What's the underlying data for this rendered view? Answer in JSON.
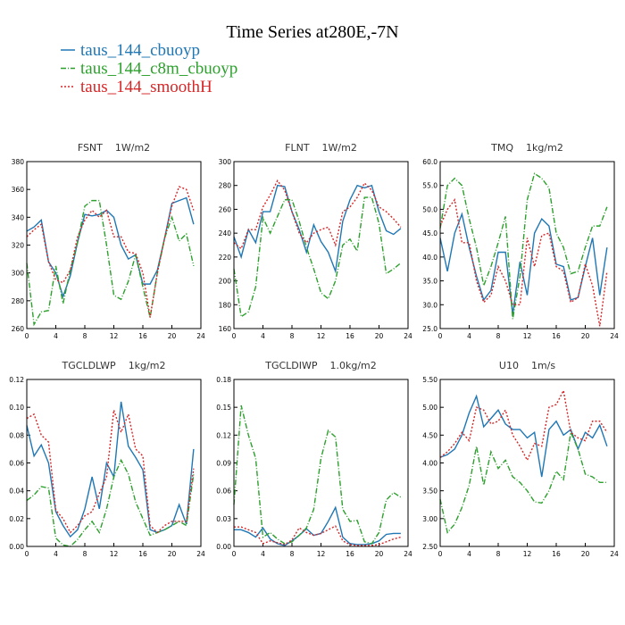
{
  "title": "Time Series at280E,-7N",
  "legend": [
    {
      "name": "taus_144_cbuoyp",
      "color": "#1f77b4",
      "dash": "none"
    },
    {
      "name": "taus_144_c8m_cbuoyp",
      "color": "#2ca02c",
      "dash": "6,2,1,2"
    },
    {
      "name": "taus_144_smoothH",
      "color": "#d62728",
      "dash": "2,2"
    }
  ],
  "chart_data": [
    {
      "type": "line",
      "title": "FSNT",
      "units": "1W/m2",
      "x": [
        0,
        1,
        2,
        3,
        4,
        5,
        6,
        7,
        8,
        9,
        10,
        11,
        12,
        13,
        14,
        15,
        16,
        17,
        18,
        19,
        20,
        21,
        22,
        23
      ],
      "series": [
        {
          "values": [
            330,
            333,
            338,
            308,
            300,
            283,
            298,
            322,
            342,
            341,
            342,
            345,
            340,
            320,
            310,
            313,
            292,
            292,
            302,
            325,
            350,
            352,
            354,
            335
          ]
        },
        {
          "values": [
            307,
            263,
            272,
            273,
            305,
            278,
            302,
            322,
            348,
            352,
            352,
            320,
            284,
            281,
            294,
            313,
            290,
            268,
            300,
            325,
            340,
            323,
            328,
            305
          ]
        },
        {
          "values": [
            326,
            331,
            335,
            308,
            295,
            293,
            302,
            326,
            338,
            345,
            340,
            345,
            326,
            326,
            315,
            314,
            300,
            268,
            300,
            325,
            348,
            362,
            360,
            345
          ]
        }
      ],
      "xlim": [
        0,
        24
      ],
      "xticks": [
        0,
        4,
        8,
        12,
        16,
        20,
        24
      ],
      "ylim": [
        260,
        380
      ],
      "yticks": [
        260,
        280,
        300,
        320,
        340,
        360,
        380
      ]
    },
    {
      "type": "line",
      "title": "FLNT",
      "units": "1W/m2",
      "x": [
        0,
        1,
        2,
        3,
        4,
        5,
        6,
        7,
        8,
        9,
        10,
        11,
        12,
        13,
        14,
        15,
        16,
        17,
        18,
        19,
        20,
        21,
        22,
        23
      ],
      "series": [
        {
          "values": [
            237,
            220,
            243,
            232,
            258,
            258,
            280,
            279,
            258,
            243,
            224,
            247,
            233,
            224,
            208,
            250,
            268,
            280,
            278,
            280,
            258,
            242,
            239,
            244
          ]
        },
        {
          "values": [
            210,
            170,
            174,
            195,
            253,
            240,
            254,
            268,
            268,
            250,
            228,
            210,
            190,
            185,
            200,
            230,
            235,
            225,
            270,
            270,
            248,
            206,
            210,
            215
          ]
        },
        {
          "values": [
            232,
            227,
            243,
            243,
            262,
            272,
            284,
            276,
            258,
            240,
            232,
            240,
            243,
            245,
            230,
            258,
            262,
            270,
            282,
            276,
            262,
            258,
            252,
            245
          ]
        }
      ],
      "xlim": [
        0,
        24
      ],
      "xticks": [
        0,
        4,
        8,
        12,
        16,
        20,
        24
      ],
      "ylim": [
        160,
        300
      ],
      "yticks": [
        160,
        180,
        200,
        220,
        240,
        260,
        280,
        300
      ]
    },
    {
      "type": "line",
      "title": "TMQ",
      "units": "1kg/m2",
      "x": [
        0,
        1,
        2,
        3,
        4,
        5,
        6,
        7,
        8,
        9,
        10,
        11,
        12,
        13,
        14,
        15,
        16,
        17,
        18,
        19,
        20,
        21,
        22,
        23
      ],
      "series": [
        {
          "values": [
            44,
            37,
            45,
            49,
            42,
            36,
            31,
            33,
            41,
            41,
            28,
            39,
            32,
            45,
            48,
            46.5,
            38.5,
            38,
            31,
            31.5,
            38,
            44,
            32,
            42
          ]
        },
        {
          "values": [
            46,
            55,
            56.5,
            55,
            48,
            42,
            34,
            38,
            43,
            48.5,
            27,
            36,
            52,
            57.5,
            56.5,
            54.5,
            45,
            42,
            36.5,
            37,
            42,
            46.5,
            46.5,
            50.5
          ]
        },
        {
          "values": [
            46.5,
            50,
            52,
            43,
            43,
            35,
            30.5,
            32,
            38,
            35,
            30,
            30,
            44,
            38,
            44.5,
            45,
            38,
            37,
            30.5,
            31.5,
            38.5,
            34,
            25.5,
            37
          ]
        }
      ],
      "xlim": [
        0,
        24
      ],
      "xticks": [
        0,
        4,
        8,
        12,
        16,
        20,
        24
      ],
      "ylim": [
        25,
        60
      ],
      "yticks": [
        {
          "value": 25,
          "label": "25.0"
        },
        {
          "value": 30,
          "label": "30.0"
        },
        {
          "value": 35,
          "label": "35.0"
        },
        {
          "value": 40,
          "label": "40.0"
        },
        {
          "value": 45,
          "label": "45.0"
        },
        {
          "value": 50,
          "label": "50.0"
        },
        {
          "value": 55,
          "label": "55.0"
        },
        {
          "value": 60,
          "label": "60.0"
        }
      ]
    },
    {
      "type": "line",
      "title": "TGCLDLWP",
      "units": "1kg/m2",
      "x": [
        0,
        1,
        2,
        3,
        4,
        5,
        6,
        7,
        8,
        9,
        10,
        11,
        12,
        13,
        14,
        15,
        16,
        17,
        18,
        19,
        20,
        21,
        22,
        23
      ],
      "series": [
        {
          "values": [
            0.087,
            0.065,
            0.073,
            0.06,
            0.025,
            0.015,
            0.007,
            0.012,
            0.027,
            0.05,
            0.027,
            0.06,
            0.05,
            0.104,
            0.072,
            0.064,
            0.055,
            0.012,
            0.01,
            0.012,
            0.015,
            0.03,
            0.016,
            0.07
          ]
        },
        {
          "values": [
            0.033,
            0.037,
            0.043,
            0.042,
            0.006,
            0.001,
            0,
            0.005,
            0.012,
            0.018,
            0.01,
            0.027,
            0.05,
            0.062,
            0.052,
            0.032,
            0.02,
            0.008,
            0.01,
            0.012,
            0.015,
            0.018,
            0.015,
            0.052
          ]
        },
        {
          "values": [
            0.092,
            0.095,
            0.08,
            0.075,
            0.026,
            0.02,
            0.01,
            0.015,
            0.022,
            0.025,
            0.038,
            0.05,
            0.098,
            0.082,
            0.095,
            0.07,
            0.065,
            0.015,
            0.01,
            0.015,
            0.018,
            0.018,
            0.018,
            0.056
          ]
        }
      ],
      "xlim": [
        0,
        24
      ],
      "xticks": [
        0,
        4,
        8,
        12,
        16,
        20,
        24
      ],
      "ylim": [
        0,
        0.12
      ],
      "yticks": [
        {
          "value": 0,
          "label": "0.00"
        },
        {
          "value": 0.02,
          "label": "0.02"
        },
        {
          "value": 0.04,
          "label": "0.04"
        },
        {
          "value": 0.06,
          "label": "0.06"
        },
        {
          "value": 0.08,
          "label": "0.08"
        },
        {
          "value": 0.1,
          "label": "0.10"
        },
        {
          "value": 0.12,
          "label": "0.12"
        }
      ]
    },
    {
      "type": "line",
      "title": "TGCLDIWP",
      "units": "1.0kg/m2",
      "x": [
        0,
        1,
        2,
        3,
        4,
        5,
        6,
        7,
        8,
        9,
        10,
        11,
        12,
        13,
        14,
        15,
        16,
        17,
        18,
        19,
        20,
        21,
        22,
        23
      ],
      "series": [
        {
          "values": [
            0.018,
            0.018,
            0.015,
            0.01,
            0.02,
            0.008,
            0.003,
            0.001,
            0.006,
            0.012,
            0.019,
            0.012,
            0.014,
            0.027,
            0.042,
            0.01,
            0.003,
            0.002,
            0.002,
            0.003,
            0.006,
            0.013,
            0.014,
            0.014
          ]
        },
        {
          "values": [
            0.045,
            0.152,
            0.12,
            0.095,
            0.01,
            0.015,
            0.008,
            0.003,
            0.005,
            0.012,
            0.02,
            0.04,
            0.095,
            0.125,
            0.118,
            0.04,
            0.027,
            0.028,
            0.005,
            0.003,
            0.015,
            0.05,
            0.058,
            0.053
          ]
        },
        {
          "values": [
            0.021,
            0.021,
            0.018,
            0.015,
            0.003,
            0.006,
            0.004,
            0.002,
            0.007,
            0.02,
            0.015,
            0.012,
            0.014,
            0.018,
            0.022,
            0.006,
            0.002,
            0.001,
            0.001,
            0.001,
            0.002,
            0.005,
            0.008,
            0.01
          ]
        }
      ],
      "xlim": [
        0,
        24
      ],
      "xticks": [
        0,
        4,
        8,
        12,
        16,
        20,
        24
      ],
      "ylim": [
        0,
        0.18
      ],
      "yticks": [
        {
          "value": 0,
          "label": "0.00"
        },
        {
          "value": 0.03,
          "label": "0.03"
        },
        {
          "value": 0.06,
          "label": "0.06"
        },
        {
          "value": 0.09,
          "label": "0.09"
        },
        {
          "value": 0.12,
          "label": "0.12"
        },
        {
          "value": 0.15,
          "label": "0.15"
        },
        {
          "value": 0.18,
          "label": "0.18"
        }
      ]
    },
    {
      "type": "line",
      "title": "U10",
      "units": "1m/s",
      "x": [
        0,
        1,
        2,
        3,
        4,
        5,
        6,
        7,
        8,
        9,
        10,
        11,
        12,
        13,
        14,
        15,
        16,
        17,
        18,
        19,
        20,
        21,
        22,
        23
      ],
      "series": [
        {
          "values": [
            4.1,
            4.15,
            4.25,
            4.5,
            4.9,
            5.2,
            4.65,
            4.8,
            4.95,
            4.7,
            4.6,
            4.6,
            4.45,
            4.55,
            3.75,
            4.6,
            4.75,
            4.5,
            4.6,
            4.25,
            4.55,
            4.45,
            4.68,
            4.3
          ]
        },
        {
          "values": [
            3.35,
            2.75,
            2.9,
            3.2,
            3.6,
            4.3,
            3.6,
            4.2,
            3.9,
            4.05,
            3.75,
            3.65,
            3.5,
            3.3,
            3.28,
            3.5,
            3.85,
            3.7,
            4.55,
            4.25,
            3.8,
            3.75,
            3.65,
            3.65
          ]
        },
        {
          "values": [
            4.1,
            4.2,
            4.35,
            4.55,
            4.4,
            5.0,
            4.95,
            4.7,
            4.75,
            4.95,
            4.5,
            4.3,
            4.05,
            4.35,
            4.3,
            5.0,
            5.05,
            5.3,
            4.55,
            4.45,
            4.4,
            4.75,
            4.75,
            4.55
          ]
        }
      ],
      "xlim": [
        0,
        24
      ],
      "xticks": [
        0,
        4,
        8,
        12,
        16,
        20,
        24
      ],
      "ylim": [
        2.5,
        5.5
      ],
      "yticks": [
        {
          "value": 2.5,
          "label": "2.50"
        },
        {
          "value": 3,
          "label": "3.00"
        },
        {
          "value": 3.5,
          "label": "3.50"
        },
        {
          "value": 4,
          "label": "4.00"
        },
        {
          "value": 4.5,
          "label": "4.50"
        },
        {
          "value": 5,
          "label": "5.00"
        },
        {
          "value": 5.5,
          "label": "5.50"
        }
      ]
    }
  ]
}
